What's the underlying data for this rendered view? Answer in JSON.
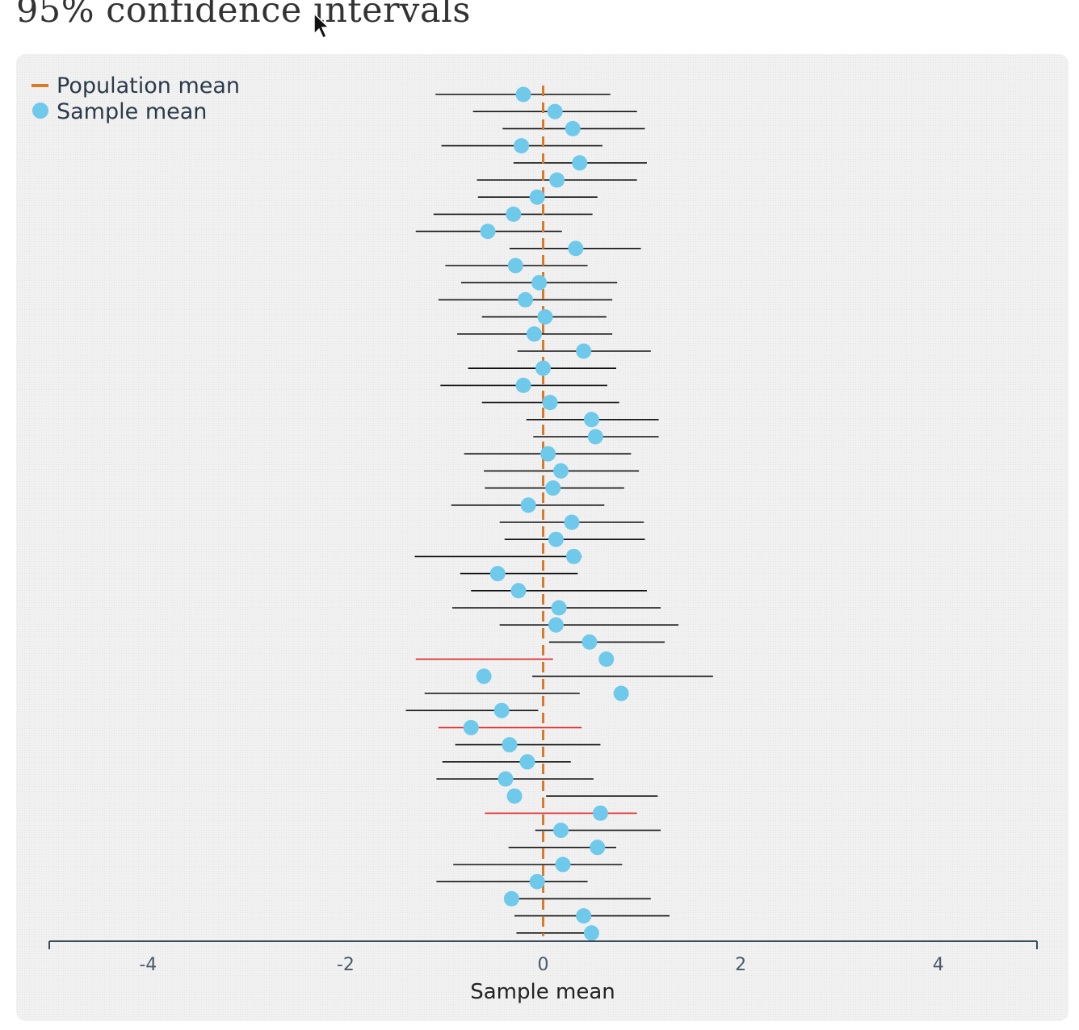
{
  "title": "95% confidence intervals",
  "colors": {
    "population_mean": "#d97a2b",
    "sample_mean": "#6fc9ea",
    "interval": "#111111",
    "interval_miss": "#e02020",
    "axis": "#3a4a5a"
  },
  "legend": {
    "population_mean": "Population mean",
    "sample_mean": "Sample mean"
  },
  "icons": {
    "cursor": "mouse-pointer-icon"
  },
  "chart_data": {
    "type": "scatter",
    "title": "95% confidence intervals",
    "xlabel": "Sample mean",
    "ylabel": "",
    "xlim": [
      -5,
      5
    ],
    "x_ticks": [
      -4,
      -2,
      0,
      2,
      4
    ],
    "x_tick_labels": [
      "-4",
      "-2",
      "0",
      "2",
      "4"
    ],
    "legend_position": "top-left",
    "grid": false,
    "population_mean": 0,
    "series": [
      {
        "name": "Sample mean",
        "values": [
          -0.2,
          0.12,
          0.3,
          -0.22,
          0.37,
          0.14,
          -0.06,
          -0.3,
          -0.56,
          0.33,
          -0.28,
          -0.04,
          -0.18,
          0.02,
          -0.09,
          0.41,
          0.0,
          -0.2,
          0.07,
          0.49,
          0.53,
          0.05,
          0.18,
          0.1,
          -0.15,
          0.29,
          0.13,
          0.31,
          -0.46,
          -0.25,
          0.16,
          0.13,
          0.47,
          0.64,
          -0.6,
          0.79,
          -0.42,
          -0.73,
          -0.34,
          -0.16,
          -0.38,
          -0.29,
          0.58,
          0.18,
          0.55,
          0.2,
          -0.06,
          -0.32,
          0.41,
          0.49,
          null
        ]
      },
      {
        "name": "Interval lower",
        "values": [
          -1.09,
          -0.71,
          -0.41,
          -1.03,
          -0.3,
          -0.67,
          -0.66,
          -1.11,
          -1.29,
          -0.34,
          -0.99,
          -0.83,
          -1.06,
          -0.62,
          -0.87,
          -0.26,
          -0.76,
          -1.04,
          -0.62,
          -0.17,
          -0.1,
          -0.8,
          -0.6,
          -0.59,
          -0.93,
          -0.44,
          -0.39,
          -1.3,
          -0.84,
          -0.73,
          -0.92,
          -0.44,
          0.06,
          -1.29,
          -0.11,
          -1.2,
          -1.39,
          -1.06,
          -0.89,
          -1.02,
          -1.08,
          0.03,
          -0.59,
          -0.08,
          -0.35,
          -0.91,
          -1.08,
          -0.28,
          -0.29,
          -0.27
        ],
        "note_hidden": null
      },
      {
        "name": "Interval upper",
        "values": [
          0.68,
          0.95,
          1.03,
          0.6,
          1.05,
          0.95,
          0.55,
          0.5,
          0.19,
          0.99,
          0.45,
          0.75,
          0.7,
          0.64,
          0.7,
          1.09,
          0.74,
          0.65,
          0.77,
          1.17,
          1.17,
          0.89,
          0.97,
          0.82,
          0.62,
          1.02,
          1.03,
          0.39,
          0.35,
          1.05,
          1.19,
          1.37,
          1.23,
          0.1,
          1.72,
          0.37,
          -0.05,
          0.39,
          0.58,
          0.28,
          0.51,
          1.16,
          0.95,
          1.19,
          0.74,
          0.8,
          0.45,
          1.09,
          1.28,
          0.55
        ]
      }
    ],
    "missed_intervals": [
      33,
      37,
      42
    ]
  }
}
